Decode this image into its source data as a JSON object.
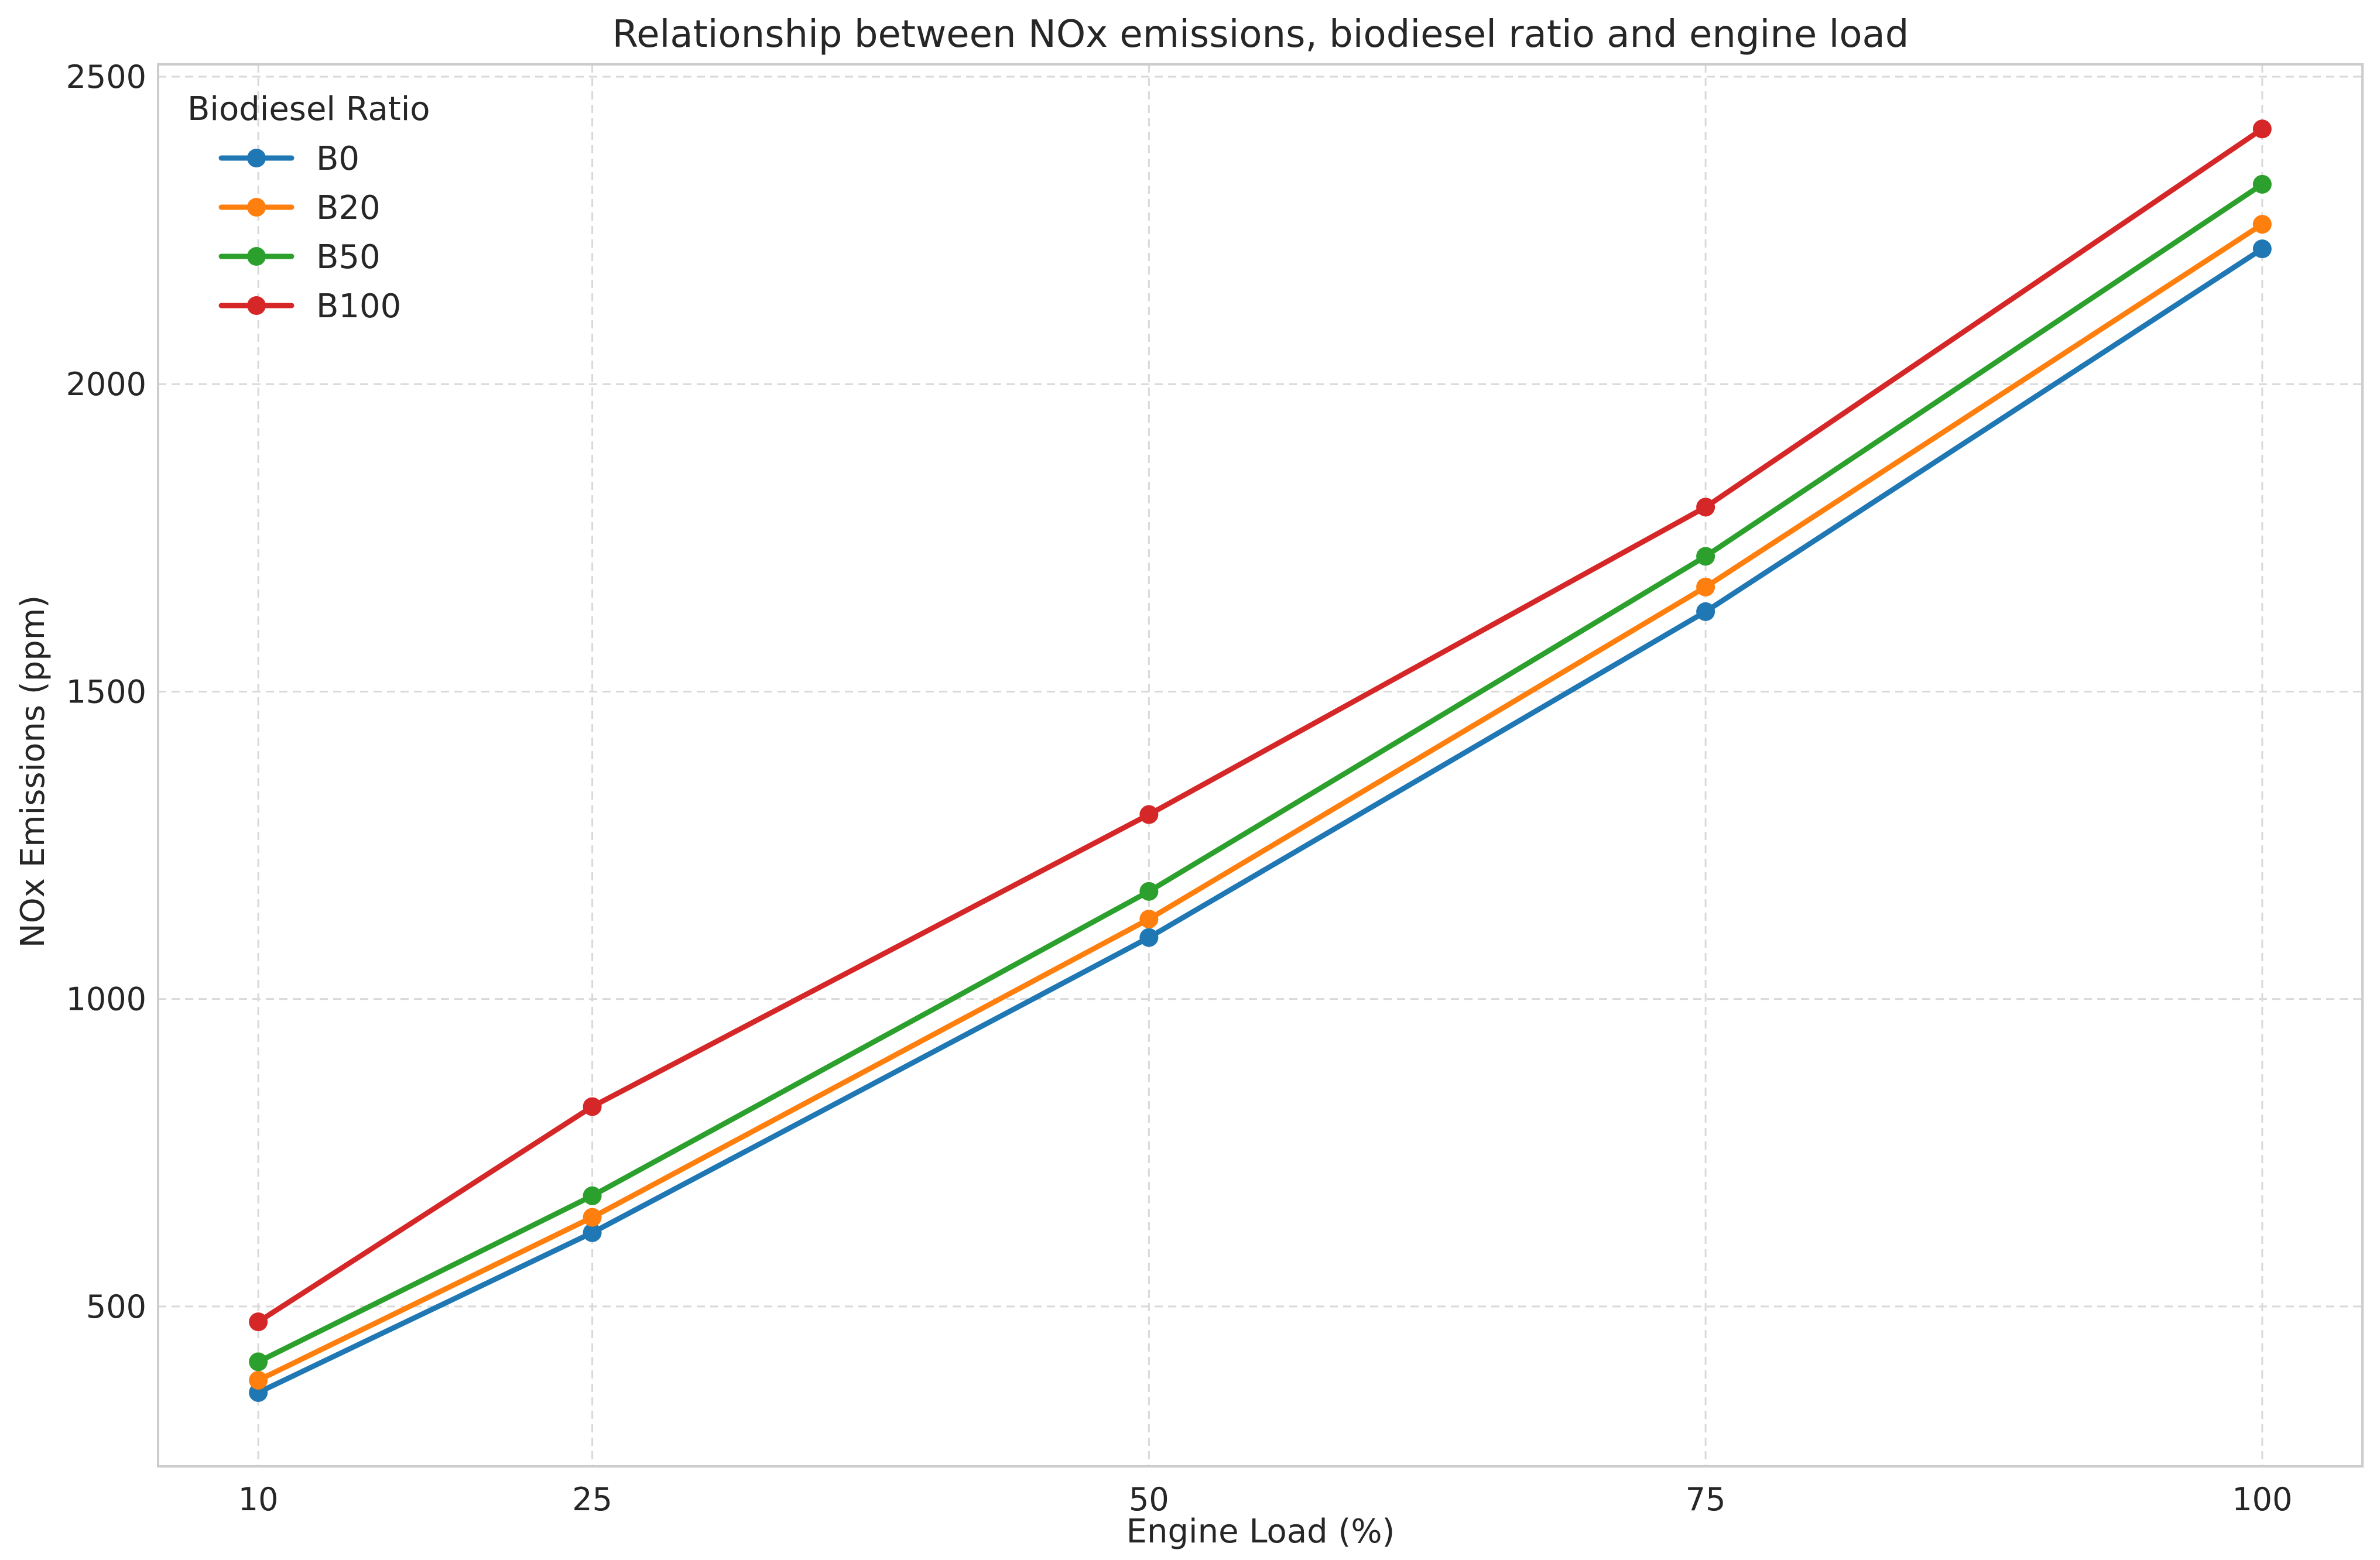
{
  "chart_data": {
    "type": "line",
    "title": "Relationship between NOx emissions, biodiesel ratio and engine load",
    "xlabel": "Engine Load (%)",
    "ylabel": "NOx Emissions (ppm)",
    "x": [
      10,
      25,
      50,
      75,
      100
    ],
    "x_tick_labels": [
      "10",
      "25",
      "50",
      "75",
      "100"
    ],
    "y_ticks": [
      500,
      1000,
      1500,
      2000,
      2500
    ],
    "y_tick_labels": [
      "500",
      "1000",
      "1500",
      "2000",
      "2500"
    ],
    "xlim": [
      5.5,
      104.5
    ],
    "ylim": [
      240,
      2520
    ],
    "grid": true,
    "legend": {
      "title": "Biodiesel Ratio",
      "placement": "top-left"
    },
    "series": [
      {
        "name": "B0",
        "color": "#1f77b4",
        "values": [
          360,
          620,
          1100,
          1630,
          2220
        ]
      },
      {
        "name": "B20",
        "color": "#ff7f0e",
        "values": [
          380,
          645,
          1130,
          1670,
          2260
        ]
      },
      {
        "name": "B50",
        "color": "#2ca02c",
        "values": [
          410,
          680,
          1175,
          1720,
          2325
        ]
      },
      {
        "name": "B100",
        "color": "#d62728",
        "values": [
          475,
          825,
          1300,
          1800,
          2415
        ]
      }
    ]
  }
}
